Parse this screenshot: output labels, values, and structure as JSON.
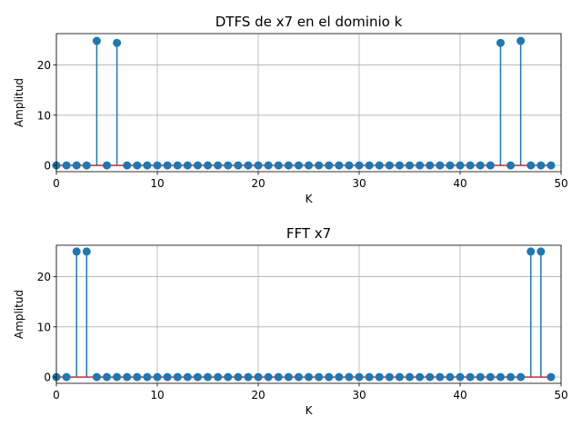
{
  "chart_data": [
    {
      "type": "stem",
      "title": "DTFS de x7 en el dominio k",
      "xlabel": "K",
      "ylabel": "Amplitud",
      "xlim": [
        0,
        50
      ],
      "ylim": [
        -1.25,
        26.25
      ],
      "xticks": [
        0,
        10,
        20,
        30,
        40,
        50
      ],
      "yticks": [
        0,
        10,
        20
      ],
      "grid": true,
      "color": "#1f77b4",
      "x": [
        0,
        1,
        2,
        3,
        4,
        5,
        6,
        7,
        8,
        9,
        10,
        11,
        12,
        13,
        14,
        15,
        16,
        17,
        18,
        19,
        20,
        21,
        22,
        23,
        24,
        25,
        26,
        27,
        28,
        29,
        30,
        31,
        32,
        33,
        34,
        35,
        36,
        37,
        38,
        39,
        40,
        41,
        42,
        43,
        44,
        45,
        46,
        47,
        48,
        49
      ],
      "values": [
        0,
        0,
        0,
        0,
        24.8,
        0,
        24.4,
        0,
        0,
        0,
        0,
        0,
        0,
        0,
        0,
        0,
        0,
        0,
        0,
        0,
        0,
        0,
        0,
        0,
        0,
        0,
        0,
        0,
        0,
        0,
        0,
        0,
        0,
        0,
        0,
        0,
        0,
        0,
        0,
        0,
        0,
        0,
        0,
        0,
        24.4,
        0,
        24.8,
        0,
        0,
        0
      ]
    },
    {
      "type": "stem",
      "title": "FFT x7",
      "xlabel": "K",
      "ylabel": "Amplitud",
      "xlim": [
        0,
        50
      ],
      "ylim": [
        -1.25,
        26.25
      ],
      "xticks": [
        0,
        10,
        20,
        30,
        40,
        50
      ],
      "yticks": [
        0,
        10,
        20
      ],
      "grid": true,
      "color": "#1f77b4",
      "x": [
        0,
        1,
        2,
        3,
        4,
        5,
        6,
        7,
        8,
        9,
        10,
        11,
        12,
        13,
        14,
        15,
        16,
        17,
        18,
        19,
        20,
        21,
        22,
        23,
        24,
        25,
        26,
        27,
        28,
        29,
        30,
        31,
        32,
        33,
        34,
        35,
        36,
        37,
        38,
        39,
        40,
        41,
        42,
        43,
        44,
        45,
        46,
        47,
        48,
        49
      ],
      "values": [
        0,
        0,
        25,
        25,
        0,
        0,
        0,
        0,
        0,
        0,
        0,
        0,
        0,
        0,
        0,
        0,
        0,
        0,
        0,
        0,
        0,
        0,
        0,
        0,
        0,
        0,
        0,
        0,
        0,
        0,
        0,
        0,
        0,
        0,
        0,
        0,
        0,
        0,
        0,
        0,
        0,
        0,
        0,
        0,
        0,
        0,
        0,
        25,
        25,
        0
      ]
    }
  ]
}
